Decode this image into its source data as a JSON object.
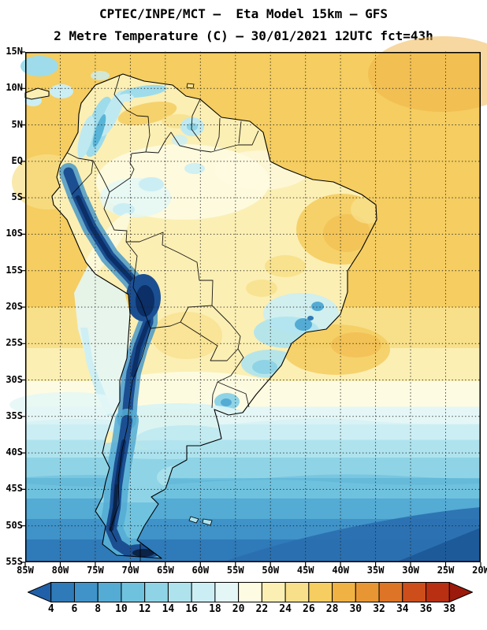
{
  "header": {
    "line1": "CPTEC/INPE/MCT —  Eta Model 15km — GFS",
    "line2": "2 Metre Temperature (C) — 30/01/2021 12UTC fct=43h"
  },
  "axes": {
    "lat": [
      "15N",
      "10N",
      "5N",
      "EQ",
      "5S",
      "10S",
      "15S",
      "20S",
      "25S",
      "30S",
      "35S",
      "40S",
      "45S",
      "50S",
      "55S"
    ],
    "lon": [
      "85W",
      "80W",
      "75W",
      "70W",
      "65W",
      "60W",
      "55W",
      "50W",
      "45W",
      "40W",
      "35W",
      "30W",
      "25W",
      "20W"
    ]
  },
  "colorbar": {
    "ticks": [
      "4",
      "6",
      "8",
      "10",
      "12",
      "14",
      "16",
      "18",
      "20",
      "22",
      "24",
      "26",
      "28",
      "30",
      "32",
      "34",
      "36",
      "38"
    ],
    "colors": [
      "#2060a8",
      "#2f7ab8",
      "#3f93c8",
      "#54abd4",
      "#6fc2de",
      "#8fd4e6",
      "#aee3ee",
      "#cbeef4",
      "#e4f7f6",
      "#fdfbe2",
      "#fbefb4",
      "#f8e08a",
      "#f5cd60",
      "#f0b243",
      "#e89633",
      "#dd7426",
      "#cd4e1b",
      "#b92f12",
      "#9c1a0b"
    ]
  }
}
